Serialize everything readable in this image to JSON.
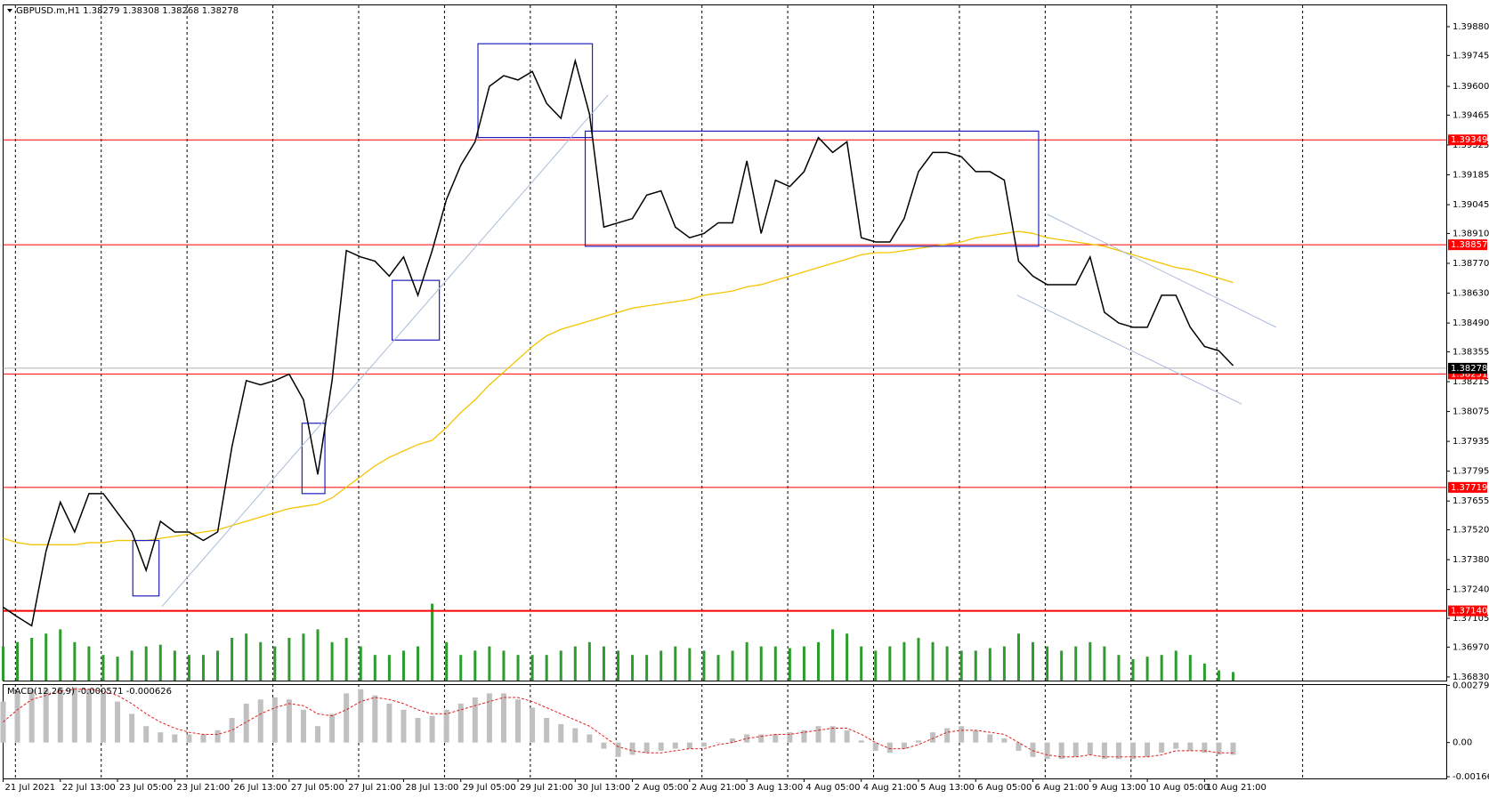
{
  "chart_data": {
    "type": "line",
    "title": "GBPUSD.m,H1  1.38279 1.38308 1.38268 1.38278",
    "color": "#000000",
    "categories": [
      "21 Jul 2021",
      null,
      null,
      null,
      "22 Jul 13:00",
      null,
      null,
      null,
      "23 Jul 05:00",
      null,
      null,
      null,
      "23 Jul 21:00",
      null,
      null,
      null,
      "26 Jul 13:00",
      null,
      null,
      null,
      "27 Jul 05:00",
      null,
      null,
      null,
      "27 Jul 21:00",
      null,
      null,
      null,
      "28 Jul 13:00",
      null,
      null,
      null,
      "29 Jul 05:00",
      null,
      null,
      null,
      "29 Jul 21:00",
      null,
      null,
      null,
      "30 Jul 13:00",
      null,
      null,
      null,
      "2 Aug 05:00",
      null,
      null,
      null,
      "2 Aug 21:00",
      null,
      null,
      null,
      "3 Aug 13:00",
      null,
      null,
      null,
      "4 Aug 05:00",
      null,
      null,
      null,
      "4 Aug 21:00",
      null,
      null,
      null,
      "5 Aug 13:00",
      null,
      null,
      null,
      "6 Aug 05:00",
      null,
      null,
      null,
      "6 Aug 21:00",
      null,
      null,
      null,
      "9 Aug 13:00",
      null,
      null,
      null,
      "10 Aug 05:00",
      null,
      null,
      null,
      "10 Aug 21:00",
      null,
      null
    ],
    "values": [
      1.37157,
      1.37112,
      1.3707,
      1.3742,
      1.3765,
      1.3751,
      1.3769,
      1.3769,
      1.376,
      1.3751,
      1.3733,
      1.3756,
      1.3751,
      1.3751,
      1.3747,
      1.3751,
      1.3791,
      1.3822,
      1.382,
      1.3822,
      1.3825,
      1.3813,
      1.3778,
      1.3822,
      1.3883,
      1.388,
      1.3878,
      1.3871,
      1.388,
      1.3862,
      1.3883,
      1.3907,
      1.3923,
      1.3934,
      1.396,
      1.3965,
      1.3963,
      1.3967,
      1.3952,
      1.3945,
      1.3972,
      1.3947,
      1.3894,
      1.3896,
      1.3898,
      1.3909,
      1.3911,
      1.3894,
      1.3889,
      1.3891,
      1.3896,
      1.3896,
      1.3925,
      1.3891,
      1.3916,
      1.3913,
      1.392,
      1.3936,
      1.3929,
      1.3934,
      1.3889,
      1.3887,
      1.3887,
      1.3898,
      1.392,
      1.3929,
      1.3929,
      1.3927,
      1.392,
      1.392,
      1.3916,
      1.3878,
      1.3871,
      1.3867,
      1.3867,
      1.3867,
      1.388,
      1.3854,
      1.3849,
      1.3847,
      1.3847,
      1.3862,
      1.3862,
      1.3847,
      1.3838,
      1.3836,
      1.3829
    ],
    "moving_average": {
      "color": "#f5c400",
      "values": [
        1.3748,
        1.3746,
        1.3745,
        1.3745,
        1.3745,
        1.3745,
        1.3746,
        1.3746,
        1.3747,
        1.3747,
        1.3747,
        1.3748,
        1.3749,
        1.375,
        1.3751,
        1.3752,
        1.3754,
        1.3756,
        1.3758,
        1.376,
        1.3762,
        1.3763,
        1.3764,
        1.3767,
        1.3772,
        1.3777,
        1.3782,
        1.3786,
        1.3789,
        1.3792,
        1.3794,
        1.38,
        1.3807,
        1.3813,
        1.382,
        1.3826,
        1.3832,
        1.3838,
        1.3843,
        1.3846,
        1.3848,
        1.385,
        1.3852,
        1.3854,
        1.3856,
        1.3857,
        1.3858,
        1.3859,
        1.386,
        1.3862,
        1.3863,
        1.3864,
        1.3866,
        1.3867,
        1.3869,
        1.3871,
        1.3873,
        1.3875,
        1.3877,
        1.3879,
        1.3881,
        1.3882,
        1.3882,
        1.3883,
        1.3884,
        1.3885,
        1.3886,
        1.3887,
        1.3889,
        1.389,
        1.3891,
        1.3892,
        1.3891,
        1.3889,
        1.3888,
        1.3887,
        1.3886,
        1.3885,
        1.3883,
        1.3881,
        1.3879,
        1.3877,
        1.3875,
        1.3874,
        1.3872,
        1.387,
        1.3868
      ]
    },
    "volume": {
      "color": "#2e9b2e",
      "ylim": [
        0,
        100
      ],
      "values": [
        40,
        45,
        50,
        55,
        60,
        45,
        40,
        30,
        28,
        35,
        40,
        42,
        35,
        30,
        30,
        35,
        50,
        55,
        45,
        40,
        50,
        55,
        60,
        45,
        50,
        40,
        30,
        30,
        35,
        40,
        90,
        45,
        30,
        35,
        40,
        35,
        30,
        30,
        30,
        35,
        40,
        45,
        40,
        35,
        30,
        30,
        35,
        40,
        38,
        35,
        30,
        35,
        45,
        40,
        40,
        38,
        40,
        45,
        60,
        55,
        40,
        35,
        40,
        45,
        50,
        45,
        40,
        35,
        35,
        38,
        40,
        55,
        45,
        40,
        35,
        40,
        45,
        40,
        30,
        25,
        28,
        30,
        35,
        30,
        20,
        12,
        10
      ]
    },
    "ylim": [
      1.36813,
      1.3998
    ],
    "yticks": [
      {
        "value": 1.3988,
        "label": "1.39880"
      },
      {
        "value": 1.39745,
        "label": "1.39745"
      },
      {
        "value": 1.396,
        "label": "1.39600"
      },
      {
        "value": 1.39465,
        "label": "1.39465"
      },
      {
        "value": 1.39325,
        "label": "1.39325"
      },
      {
        "value": 1.39185,
        "label": "1.39185"
      },
      {
        "value": 1.39045,
        "label": "1.39045"
      },
      {
        "value": 1.3891,
        "label": "1.38910"
      },
      {
        "value": 1.3877,
        "label": "1.38770"
      },
      {
        "value": 1.3863,
        "label": "1.38630"
      },
      {
        "value": 1.3849,
        "label": "1.38490"
      },
      {
        "value": 1.38355,
        "label": "1.38355"
      },
      {
        "value": 1.38215,
        "label": "1.38215"
      },
      {
        "value": 1.38075,
        "label": "1.38075"
      },
      {
        "value": 1.37935,
        "label": "1.37935"
      },
      {
        "value": 1.37795,
        "label": "1.37795"
      },
      {
        "value": 1.37655,
        "label": "1.37655"
      },
      {
        "value": 1.3752,
        "label": "1.37520"
      },
      {
        "value": 1.3738,
        "label": "1.37380"
      },
      {
        "value": 1.3724,
        "label": "1.37240"
      },
      {
        "value": 1.37105,
        "label": "1.37105"
      },
      {
        "value": 1.3697,
        "label": "1.36970"
      },
      {
        "value": 1.3683,
        "label": "1.36830"
      }
    ],
    "vgrid": [
      0.86,
      6.86,
      12.86,
      18.86,
      24.86,
      30.86,
      36.86,
      42.86,
      48.86,
      54.86,
      60.86,
      66.86,
      72.86,
      78.86,
      84.86,
      90.86
    ],
    "levels": [
      1.39349,
      1.38857,
      1.38251,
      1.37719,
      {
        "value": 1.3714,
        "label": "1.37140"
      }
    ],
    "levels_color": "#ff0000",
    "last_price": 1.38278,
    "rectangles": [
      {
        "x": [
          9.07,
          10.9
        ],
        "y": [
          1.3747,
          1.3721
        ]
      },
      {
        "x": [
          20.9,
          22.5
        ],
        "y": [
          1.3802,
          1.3769
        ]
      },
      {
        "x": [
          27.2,
          30.5
        ],
        "y": [
          1.3869,
          1.3841
        ]
      },
      {
        "x": [
          33.2,
          41.2
        ],
        "y": [
          1.398,
          1.3936
        ]
      },
      {
        "x": [
          40.7,
          72.4
        ],
        "y": [
          1.3939,
          1.3885
        ]
      }
    ],
    "rectangles_color": "#2020c0",
    "trendlines": [
      {
        "x": [
          11.1,
          42.3
        ],
        "y": [
          1.3716,
          1.3956
        ]
      },
      {
        "x": [
          73,
          89
        ],
        "y": [
          1.39,
          1.3847
        ]
      },
      {
        "x": [
          70.9,
          86.6
        ],
        "y": [
          1.3862,
          1.3811
        ]
      }
    ],
    "trendlines_color": "#a8bcd8",
    "macd": {
      "label": "MACD(12,26,9) -0.000571 -0.000626",
      "ylim": [
        -0.00175,
        0.00285
      ],
      "yticks": [
        0.002792,
        {
          "value": 0,
          "label": "0.00"
        },
        -0.001667
      ],
      "histogram_color": "#c0c0c0",
      "signal_color": "#e02020",
      "histogram": [
        0.002,
        0.0025,
        0.0026,
        0.0026,
        0.0027,
        0.0027,
        0.0026,
        0.0024,
        0.002,
        0.0014,
        0.0008,
        0.0005,
        0.0004,
        0.0004,
        0.0004,
        0.0006,
        0.0012,
        0.0019,
        0.0021,
        0.0022,
        0.0021,
        0.0016,
        0.0008,
        0.0014,
        0.0024,
        0.0026,
        0.0023,
        0.0019,
        0.0016,
        0.0012,
        0.0013,
        0.0016,
        0.0019,
        0.0022,
        0.0024,
        0.0024,
        0.0021,
        0.0017,
        0.0012,
        0.0009,
        0.0007,
        0.0004,
        -0.0003,
        -0.0007,
        -0.0006,
        -0.0005,
        -0.0004,
        -0.0003,
        -0.0003,
        -0.0002,
        0,
        0.0002,
        0.0004,
        0.0004,
        0.0004,
        0.0005,
        0.0006,
        0.0008,
        0.0008,
        0.0006,
        0.0001,
        -0.0004,
        -0.0005,
        -0.0003,
        0.0001,
        0.0005,
        0.0007,
        0.0008,
        0.0006,
        0.0004,
        0.0002,
        -0.0004,
        -0.0007,
        -0.0008,
        -0.0008,
        -0.0007,
        -0.0006,
        -0.0008,
        -0.0008,
        -0.0008,
        -0.0007,
        -0.0005,
        -0.0003,
        -0.0004,
        -0.0005,
        -0.0006,
        -0.0006
      ],
      "signal": [
        0.001,
        0.0016,
        0.0021,
        0.0023,
        0.0025,
        0.0026,
        0.0026,
        0.0025,
        0.0023,
        0.0019,
        0.0014,
        0.001,
        0.0007,
        0.0005,
        0.0004,
        0.0004,
        0.0006,
        0.001,
        0.0014,
        0.0017,
        0.0019,
        0.0018,
        0.0014,
        0.0013,
        0.0016,
        0.002,
        0.0022,
        0.0021,
        0.0019,
        0.0016,
        0.0014,
        0.0014,
        0.0016,
        0.0018,
        0.002,
        0.0022,
        0.0022,
        0.002,
        0.0017,
        0.0014,
        0.0011,
        0.0008,
        0.0003,
        -0.0002,
        -0.0004,
        -0.0005,
        -0.0005,
        -0.0004,
        -0.0003,
        -0.0003,
        -0.0001,
        0,
        0.0002,
        0.0003,
        0.0004,
        0.0004,
        0.0005,
        0.0006,
        0.0007,
        0.0007,
        0.0004,
        0,
        -0.0003,
        -0.0003,
        -0.0001,
        0.0002,
        0.0005,
        0.0006,
        0.0006,
        0.0005,
        0.0004,
        0,
        -0.0004,
        -0.0006,
        -0.0007,
        -0.0007,
        -0.0006,
        -0.0007,
        -0.0007,
        -0.0007,
        -0.0007,
        -0.0006,
        -0.0004,
        -0.0004,
        -0.0004,
        -0.0005,
        -0.0005
      ]
    }
  }
}
